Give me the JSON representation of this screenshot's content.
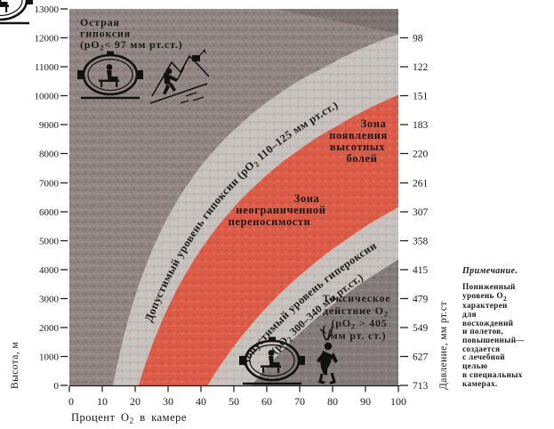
{
  "colors": {
    "dark_zone": "#8f8684",
    "dark_zone_dot1": "#a89090",
    "dark_zone_dot2": "#746b69",
    "light_band": "#c7c1bd",
    "red_zone": "#dc5c48",
    "dark_zone2": "#837b79",
    "maroon_text": "#7c1e12",
    "black": "#1a1a1a"
  },
  "axes": {
    "y_left_label": "Высота, м",
    "y_right_label": "Давление, мм рт.ст",
    "x_label_pre": "Процент O",
    "x_label_sub": "2",
    "x_label_post": " в камере",
    "left_ticks": [
      "13000",
      "12000",
      "11000",
      "10000",
      "9000",
      "8000",
      "7000",
      "6000",
      "5000",
      "4000",
      "3000",
      "2000",
      "1000",
      "0"
    ],
    "right_ticks": [
      "98",
      "122",
      "151",
      "183",
      "220",
      "261",
      "307",
      "358",
      "415",
      "479",
      "549",
      "627",
      "713"
    ],
    "x_ticks": [
      "0",
      "10",
      "20",
      "30",
      "40",
      "50",
      "60",
      "70",
      "80",
      "90",
      "100"
    ]
  },
  "zones": {
    "acute_hypoxia": {
      "l1": "Острая",
      "l2": "гипоксия",
      "l3pre": "(pO",
      "l3sub": "2",
      "l3post": "< 97 мм рт.ст.)"
    },
    "hypoxia_band": {
      "pre": "Допустимый уровень гипоксии (pO",
      "sub": "2",
      "post": " 110–125 мм рт.ст.)"
    },
    "altitude_pain": {
      "l1": "Зона",
      "l2": "появления",
      "l3": "высотных",
      "l4": "болей"
    },
    "unlimited": {
      "l1": "Зона",
      "l2": "неограниченной",
      "l3": "переносимости"
    },
    "hyperoxia_band": {
      "name": "Допустимый уровень гипероксии",
      "rpre": "(pO",
      "rsub": "2",
      "rpost": " 300–340 мм рт.ст.)"
    },
    "toxic": {
      "l1": "Токсическое",
      "l2pre": "действие O",
      "l2sub": "2",
      "l3pre": "(pO",
      "l3sub": "2",
      "l3post": " > 405",
      "l4": "мм рт. ст.)"
    }
  },
  "note": {
    "title": "Примечание.",
    "l1": "Пониженный",
    "l2pre": "уровень O",
    "l2sub": "2",
    "l3": "характерен",
    "l4": "для",
    "l5": "восхождений",
    "l6": "и полетов,",
    "l7": "повышенный—",
    "l8": "создается",
    "l9": "с лечебной",
    "l10": "целью",
    "l11": "в специальных",
    "l12": "камерах."
  },
  "chart_data": {
    "type": "area",
    "x_axis": {
      "label": "Процент O2 в камере",
      "min": 0,
      "max": 100,
      "tick_step": 10
    },
    "y_axis_left": {
      "label": "Высота, м",
      "min": 0,
      "max": 13000,
      "tick_step": 1000
    },
    "y_axis_right": {
      "label": "Давление, мм рт.ст",
      "ticks": [
        98,
        122,
        151,
        183,
        220,
        261,
        307,
        358,
        415,
        479,
        549,
        627,
        713
      ],
      "tick_altitudes_m": [
        12000,
        11000,
        10000,
        9000,
        8000,
        7000,
        6000,
        5000,
        4000,
        3000,
        2000,
        1000,
        0
      ]
    },
    "pressure_by_altitude": {
      "alt": [
        0,
        1000,
        2000,
        3000,
        4000,
        5000,
        6000,
        7000,
        8000,
        9000,
        10000,
        11000,
        12000
      ],
      "p": [
        713,
        627,
        549,
        479,
        415,
        358,
        307,
        261,
        220,
        183,
        151,
        122,
        98
      ]
    },
    "po2_thresholds_mmhg": {
      "acute_hypoxia_below": 97,
      "admissible_hypoxia_band": [
        110,
        125
      ],
      "admissible_hyperoxia_band": [
        300,
        340
      ],
      "toxic_above": 405
    },
    "zone_names": [
      "Острая гипоксия",
      "Допустимый уровень гипоксии",
      "Зона появления высотных болей",
      "Зона неограниченной переносимости",
      "Допустимый уровень гипероксии",
      "Токсическое действие O2"
    ]
  }
}
